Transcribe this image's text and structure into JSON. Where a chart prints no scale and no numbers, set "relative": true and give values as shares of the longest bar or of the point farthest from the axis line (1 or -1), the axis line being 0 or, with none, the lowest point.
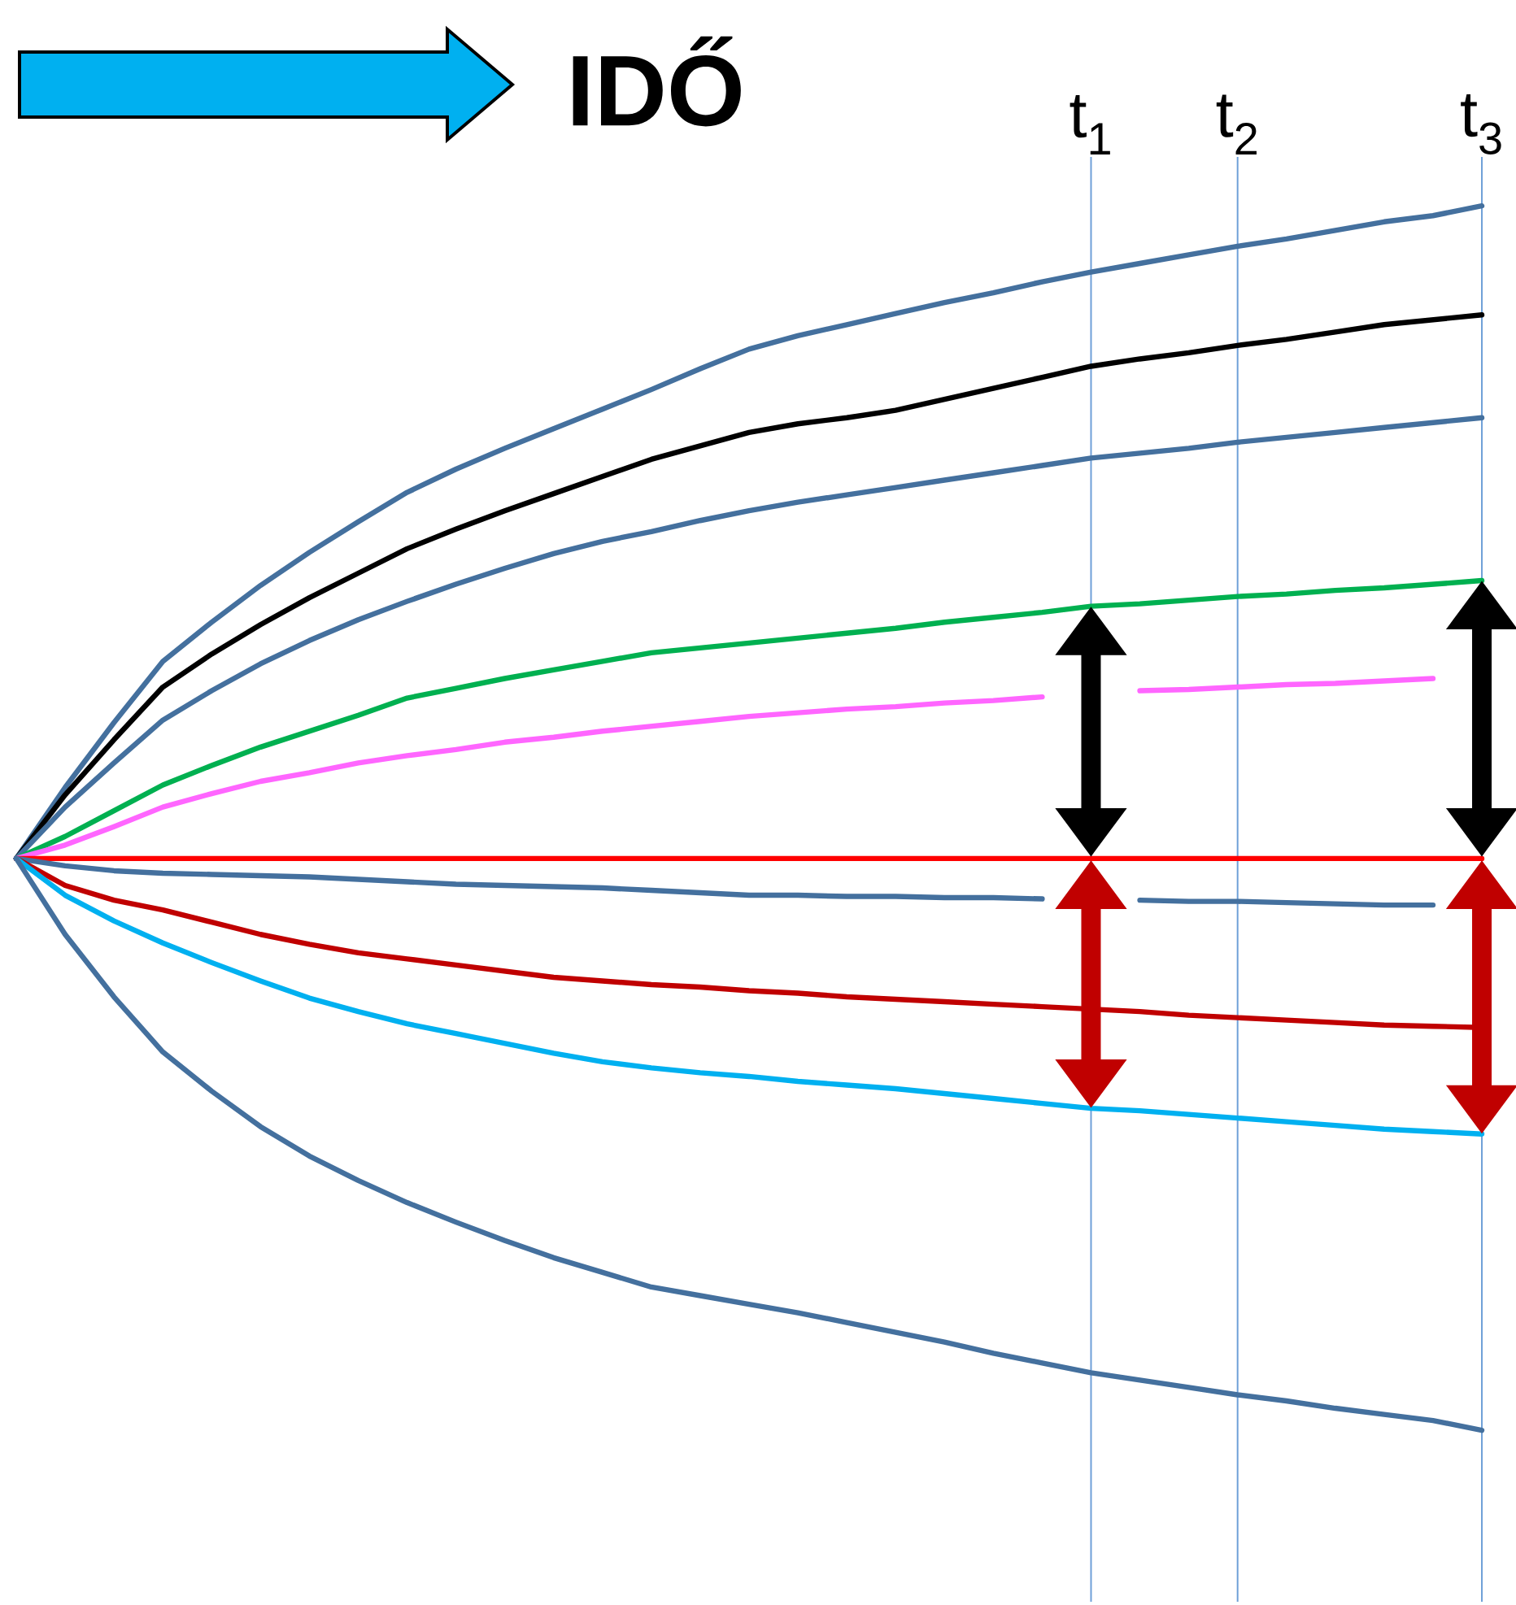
{
  "chart_data": {
    "type": "line",
    "title": "IDŐ",
    "relative": true,
    "tick_labels": "x",
    "line_style": "solid",
    "grid": "x",
    "categories": [
      null,
      null,
      null,
      null,
      null,
      null,
      null,
      null,
      null,
      null,
      null,
      null,
      null,
      null,
      null,
      null,
      null,
      null,
      null,
      null,
      null,
      null,
      "t$_{1}$",
      null,
      null,
      "t$_{2}$",
      null,
      null,
      null,
      null,
      "t$_{3}$"
    ],
    "series": [
      {
        "color": "#44709e",
        "values": [
          0.467,
          0.525,
          0.578,
          0.628,
          0.66,
          0.69,
          0.717,
          0.742,
          0.766,
          0.785,
          0.802,
          0.818,
          0.834,
          0.85,
          0.867,
          0.883,
          0.894,
          0.903,
          0.912,
          0.921,
          0.929,
          0.938,
          0.946,
          0.953,
          0.96,
          0.967,
          0.973,
          0.98,
          0.987,
          0.992,
          1
        ]
      },
      {
        "color": "#000000",
        "values": [
          0.467,
          0.519,
          0.564,
          0.607,
          0.634,
          0.658,
          0.68,
          0.7,
          0.72,
          0.736,
          0.751,
          0.765,
          0.779,
          0.793,
          0.804,
          0.815,
          0.822,
          0.827,
          0.833,
          0.842,
          0.851,
          0.86,
          0.869,
          0.875,
          0.88,
          0.886,
          0.891,
          0.897,
          0.903,
          0.907,
          0.911
        ]
      },
      {
        "color": "#44709e",
        "values": [
          0.467,
          0.509,
          0.545,
          0.58,
          0.604,
          0.626,
          0.645,
          0.662,
          0.677,
          0.691,
          0.704,
          0.716,
          0.726,
          0.734,
          0.743,
          0.751,
          0.758,
          0.764,
          0.77,
          0.776,
          0.782,
          0.788,
          0.794,
          0.798,
          0.802,
          0.807,
          0.811,
          0.815,
          0.819,
          0.823,
          0.827
        ]
      },
      {
        "color": "#00b050",
        "values": [
          0.467,
          0.485,
          0.506,
          0.527,
          0.543,
          0.558,
          0.571,
          0.584,
          0.598,
          0.606,
          0.614,
          0.621,
          0.628,
          0.635,
          0.639,
          0.643,
          0.647,
          0.651,
          0.655,
          0.66,
          0.664,
          0.668,
          0.673,
          0.675,
          0.678,
          0.681,
          0.683,
          0.686,
          0.688,
          0.691,
          0.694
        ]
      },
      {
        "color": "#ff66ff",
        "values": [
          0.467,
          0.478,
          0.493,
          0.509,
          0.52,
          0.53,
          0.537,
          0.545,
          0.551,
          0.556,
          0.562,
          0.566,
          0.571,
          0.575,
          0.579,
          0.583,
          0.586,
          0.589,
          0.591,
          0.594,
          0.596,
          0.599,
          null,
          0.604,
          0.605,
          0.607,
          0.609,
          0.61,
          0.612,
          0.614,
          null
        ]
      },
      {
        "color": "#ff0000",
        "values": [
          0.467,
          0.467,
          0.467,
          0.467,
          0.467,
          0.467,
          0.467,
          0.467,
          0.467,
          0.467,
          0.467,
          0.467,
          0.467,
          0.467,
          0.467,
          0.467,
          0.467,
          0.467,
          0.467,
          0.467,
          0.467,
          0.467,
          0.467,
          0.467,
          0.467,
          0.467,
          0.467,
          0.467,
          0.467,
          0.467,
          0.467
        ]
      },
      {
        "color": "#44709e",
        "values": [
          0.467,
          0.461,
          0.457,
          0.455,
          0.454,
          0.453,
          0.452,
          0.45,
          0.448,
          0.446,
          0.445,
          0.444,
          0.443,
          0.441,
          0.439,
          0.437,
          0.437,
          0.436,
          0.436,
          0.435,
          0.435,
          0.434,
          null,
          0.433,
          0.432,
          0.432,
          0.431,
          0.43,
          0.429,
          0.429,
          null
        ]
      },
      {
        "color": "#c00000",
        "values": [
          0.467,
          0.445,
          0.433,
          0.425,
          0.415,
          0.405,
          0.397,
          0.39,
          0.385,
          0.38,
          0.375,
          0.37,
          0.367,
          0.364,
          0.362,
          0.359,
          0.357,
          0.354,
          0.352,
          0.35,
          0.348,
          0.346,
          0.344,
          0.342,
          0.339,
          0.337,
          0.335,
          0.333,
          0.331,
          0.33,
          0.329
        ]
      },
      {
        "color": "#00b0f0",
        "values": [
          0.467,
          0.437,
          0.416,
          0.398,
          0.382,
          0.367,
          0.353,
          0.342,
          0.332,
          0.324,
          0.316,
          0.308,
          0.301,
          0.296,
          0.292,
          0.289,
          0.285,
          0.282,
          0.279,
          0.275,
          0.271,
          0.267,
          0.263,
          0.261,
          0.258,
          0.255,
          0.252,
          0.249,
          0.246,
          0.244,
          0.242
        ]
      },
      {
        "color": "#44709e",
        "values": [
          0.467,
          0.405,
          0.354,
          0.309,
          0.277,
          0.248,
          0.224,
          0.204,
          0.186,
          0.17,
          0.155,
          0.141,
          0.129,
          0.117,
          0.11,
          0.103,
          0.096,
          0.088,
          0.08,
          0.072,
          0.063,
          0.055,
          0.047,
          0.041,
          0.035,
          0.029,
          0.024,
          0.018,
          0.013,
          0.008,
          0
        ]
      }
    ]
  }
}
